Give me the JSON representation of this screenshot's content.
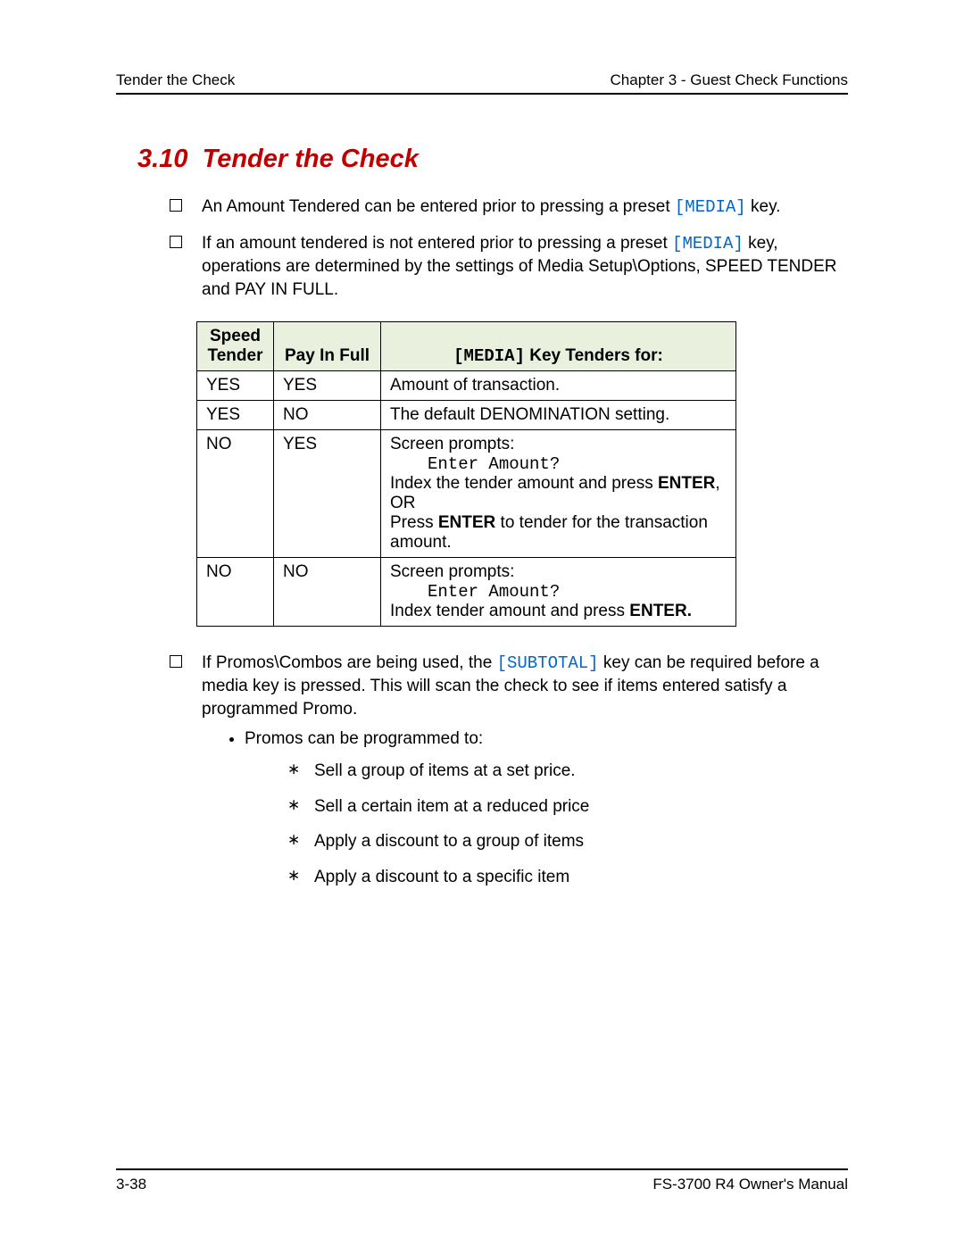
{
  "header": {
    "left": "Tender the Check",
    "right": "Chapter 3 - Guest Check Functions"
  },
  "section": {
    "number": "3.10",
    "title": "Tender the Check"
  },
  "bullets": {
    "b1_pre": "An Amount Tendered can be entered prior to pressing a preset ",
    "b1_key": "[MEDIA]",
    "b1_post": " key.",
    "b2_pre": "If an amount tendered is not entered prior to pressing a preset ",
    "b2_key": "[MEDIA]",
    "b2_post": " key, operations are determined by the settings of Media Setup\\Options, SPEED TENDER and PAY IN FULL.",
    "b3_pre": "If Promos\\Combos are being used, the ",
    "b3_key": "[SUBTOTAL]",
    "b3_post": " key can be required before a media key is pressed.  This will scan the check to see if items entered satisfy a programmed Promo."
  },
  "table": {
    "headers": {
      "h1_line1": "Speed",
      "h1_line2": "Tender",
      "h2": "Pay In Full",
      "h3_key": "[MEDIA]",
      "h3_rest": " Key Tenders for:"
    },
    "rows": {
      "r1": {
        "c1": "YES",
        "c2": "YES",
        "c3": "Amount of transaction."
      },
      "r2": {
        "c1": "YES",
        "c2": "NO",
        "c3": "The default DENOMINATION setting."
      },
      "r3": {
        "c1": "NO",
        "c2": "YES",
        "line1": "Screen prompts:",
        "prompt": "Enter Amount?",
        "line2a": "Index the tender amount and press ",
        "line2b": "ENTER",
        "line2c": ",",
        "or": "OR",
        "line3a": "Press ",
        "line3b": "ENTER",
        "line3c": "  to tender for the transaction amount."
      },
      "r4": {
        "c1": "NO",
        "c2": "NO",
        "line1": "Screen prompts:",
        "prompt": "Enter Amount?",
        "line2a": "Index tender amount and press ",
        "line2b": "ENTER."
      }
    }
  },
  "sublist": {
    "intro": "Promos can be programmed to:",
    "a1": "Sell a group of items at a set price.",
    "a2": "Sell a certain item at a reduced price",
    "a3": "Apply a discount to a group of items",
    "a4": "Apply a discount to a specific item"
  },
  "footer": {
    "left": "3-38",
    "right": "FS-3700 R4 Owner's Manual"
  },
  "colors": {
    "title": "#c00000",
    "link_mono": "#0066cc",
    "table_header_bg": "#eaf0de",
    "border": "#000000",
    "text": "#000000",
    "background": "#ffffff"
  },
  "typography": {
    "body_fontsize_pt": 14,
    "title_fontsize_pt": 22,
    "font_family": "Arial",
    "mono_family": "Courier New"
  }
}
